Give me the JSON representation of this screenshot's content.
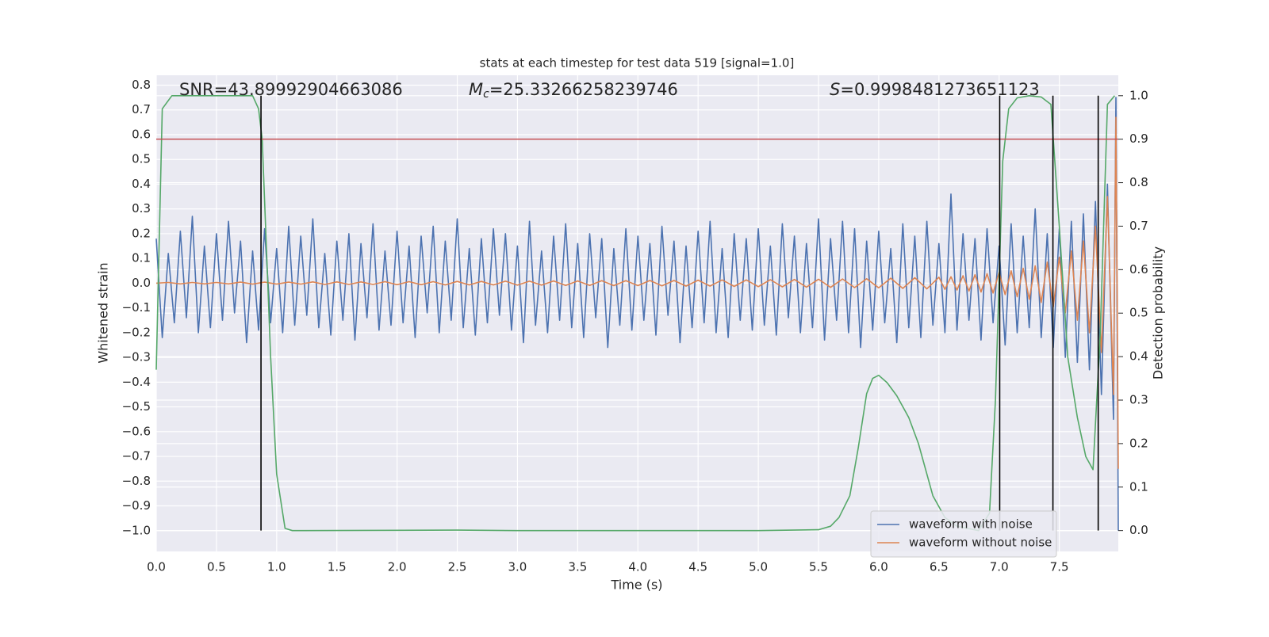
{
  "chart_data": {
    "type": "line",
    "title": "stats at each timestep for test data 519 [signal=1.0]",
    "xlabel": "Time (s)",
    "ylabel": "Whitened strain",
    "y2label": "Detection probability",
    "snr_label": "SNR=43.89992904663086",
    "mc_label": [
      "M",
      "c",
      "=25.33266258239746"
    ],
    "s_label": [
      "S",
      "=0.9998481273651123"
    ],
    "xlim": [
      0,
      7.99
    ],
    "ylim": [
      -1.084,
      0.84
    ],
    "y2lim": [
      -0.048,
      1.047
    ],
    "grid": true,
    "legend": "lower right",
    "xticks": [
      {
        "value": 0,
        "label": "0.0"
      },
      {
        "value": 0.5,
        "label": "0.5"
      },
      {
        "value": 1,
        "label": "1.0"
      },
      {
        "value": 1.5,
        "label": "1.5"
      },
      {
        "value": 2,
        "label": "2.0"
      },
      {
        "value": 2.5,
        "label": "2.5"
      },
      {
        "value": 3,
        "label": "3.0"
      },
      {
        "value": 3.5,
        "label": "3.5"
      },
      {
        "value": 4,
        "label": "4.0"
      },
      {
        "value": 4.5,
        "label": "4.5"
      },
      {
        "value": 5,
        "label": "5.0"
      },
      {
        "value": 5.5,
        "label": "5.5"
      },
      {
        "value": 6,
        "label": "6.0"
      },
      {
        "value": 6.5,
        "label": "6.5"
      },
      {
        "value": 7,
        "label": "7.0"
      },
      {
        "value": 7.5,
        "label": "7.5"
      }
    ],
    "yticks": [
      {
        "value": -1,
        "label": "−1.0"
      },
      {
        "value": -0.9,
        "label": "−0.9"
      },
      {
        "value": -0.8,
        "label": "−0.8"
      },
      {
        "value": -0.7,
        "label": "−0.7"
      },
      {
        "value": -0.6,
        "label": "−0.6"
      },
      {
        "value": -0.5,
        "label": "−0.5"
      },
      {
        "value": -0.4,
        "label": "−0.4"
      },
      {
        "value": -0.3,
        "label": "−0.3"
      },
      {
        "value": -0.2,
        "label": "−0.2"
      },
      {
        "value": -0.1,
        "label": "−0.1"
      },
      {
        "value": 0,
        "label": "0.0"
      },
      {
        "value": 0.1,
        "label": "0.1"
      },
      {
        "value": 0.2,
        "label": "0.2"
      },
      {
        "value": 0.3,
        "label": "0.3"
      },
      {
        "value": 0.4,
        "label": "0.4"
      },
      {
        "value": 0.5,
        "label": "0.5"
      },
      {
        "value": 0.6,
        "label": "0.6"
      },
      {
        "value": 0.7,
        "label": "0.7"
      },
      {
        "value": 0.8,
        "label": "0.8"
      }
    ],
    "y2ticks": [
      {
        "value": 0,
        "label": "0.0"
      },
      {
        "value": 0.1,
        "label": "0.1"
      },
      {
        "value": 0.2,
        "label": "0.2"
      },
      {
        "value": 0.3,
        "label": "0.3"
      },
      {
        "value": 0.4,
        "label": "0.4"
      },
      {
        "value": 0.5,
        "label": "0.5"
      },
      {
        "value": 0.6,
        "label": "0.6"
      },
      {
        "value": 0.7,
        "label": "0.7"
      },
      {
        "value": 0.8,
        "label": "0.8"
      },
      {
        "value": 0.9,
        "label": "0.9"
      },
      {
        "value": 1,
        "label": "1.0"
      }
    ],
    "threshold_y2": 0.9,
    "threshold_color": "#c44e52",
    "vlines": [
      0.87,
      7.005,
      7.447,
      7.823
    ],
    "vline_color": "#000000",
    "series": [
      {
        "name": "waveform with noise",
        "color": "#4c72b0",
        "x": [
          0,
          0.05,
          0.1,
          0.15,
          0.2,
          0.25,
          0.3,
          0.35,
          0.4,
          0.45,
          0.5,
          0.55,
          0.6,
          0.65,
          0.7,
          0.75,
          0.8,
          0.85,
          0.9,
          0.95,
          1,
          1.05,
          1.1,
          1.15,
          1.2,
          1.25,
          1.3,
          1.35,
          1.4,
          1.45,
          1.5,
          1.55,
          1.6,
          1.65,
          1.7,
          1.75,
          1.8,
          1.85,
          1.9,
          1.95,
          2,
          2.05,
          2.1,
          2.15,
          2.2,
          2.25,
          2.3,
          2.35,
          2.4,
          2.45,
          2.5,
          2.55,
          2.6,
          2.65,
          2.7,
          2.75,
          2.8,
          2.85,
          2.9,
          2.95,
          3,
          3.05,
          3.1,
          3.15,
          3.2,
          3.25,
          3.3,
          3.35,
          3.4,
          3.45,
          3.5,
          3.55,
          3.6,
          3.65,
          3.7,
          3.75,
          3.8,
          3.85,
          3.9,
          3.95,
          4,
          4.05,
          4.1,
          4.15,
          4.2,
          4.25,
          4.3,
          4.35,
          4.4,
          4.45,
          4.5,
          4.55,
          4.6,
          4.65,
          4.7,
          4.75,
          4.8,
          4.85,
          4.9,
          4.95,
          5,
          5.05,
          5.1,
          5.15,
          5.2,
          5.25,
          5.3,
          5.35,
          5.4,
          5.45,
          5.5,
          5.55,
          5.6,
          5.65,
          5.7,
          5.75,
          5.8,
          5.85,
          5.9,
          5.95,
          6,
          6.05,
          6.1,
          6.15,
          6.2,
          6.25,
          6.3,
          6.35,
          6.4,
          6.45,
          6.5,
          6.55,
          6.6,
          6.65,
          6.7,
          6.75,
          6.8,
          6.85,
          6.9,
          6.95,
          7,
          7.05,
          7.1,
          7.15,
          7.2,
          7.25,
          7.3,
          7.35,
          7.4,
          7.45,
          7.5,
          7.55,
          7.6,
          7.65,
          7.7,
          7.75,
          7.8,
          7.85,
          7.9,
          7.95,
          7.97,
          7.99
        ],
        "values": [
          0.18,
          -0.22,
          0.12,
          -0.16,
          0.21,
          -0.14,
          0.27,
          -0.2,
          0.15,
          -0.18,
          0.2,
          -0.15,
          0.25,
          -0.12,
          0.17,
          -0.24,
          0.13,
          -0.19,
          0.22,
          -0.16,
          0.14,
          -0.2,
          0.23,
          -0.17,
          0.19,
          -0.13,
          0.26,
          -0.18,
          0.12,
          -0.21,
          0.17,
          -0.15,
          0.2,
          -0.23,
          0.16,
          -0.14,
          0.24,
          -0.19,
          0.13,
          -0.17,
          0.21,
          -0.16,
          0.15,
          -0.22,
          0.19,
          -0.12,
          0.23,
          -0.2,
          0.17,
          -0.15,
          0.26,
          -0.18,
          0.14,
          -0.21,
          0.18,
          -0.16,
          0.22,
          -0.13,
          0.2,
          -0.19,
          0.15,
          -0.24,
          0.25,
          -0.17,
          0.13,
          -0.2,
          0.19,
          -0.15,
          0.24,
          -0.18,
          0.16,
          -0.22,
          0.2,
          -0.14,
          0.18,
          -0.26,
          0.14,
          -0.17,
          0.22,
          -0.19,
          0.19,
          -0.15,
          0.16,
          -0.21,
          0.23,
          -0.13,
          0.17,
          -0.24,
          0.15,
          -0.18,
          0.21,
          -0.16,
          0.25,
          -0.2,
          0.14,
          -0.22,
          0.2,
          -0.15,
          0.18,
          -0.19,
          0.22,
          -0.17,
          0.15,
          -0.21,
          0.24,
          -0.14,
          0.19,
          -0.2,
          0.16,
          -0.18,
          0.26,
          -0.23,
          0.18,
          -0.15,
          0.25,
          -0.2,
          0.22,
          -0.26,
          0.17,
          -0.19,
          0.21,
          -0.16,
          0.14,
          -0.24,
          0.24,
          -0.18,
          0.19,
          -0.22,
          0.25,
          -0.17,
          0.16,
          -0.2,
          0.36,
          -0.19,
          0.2,
          -0.15,
          0.18,
          -0.23,
          0.22,
          -0.16,
          0.15,
          -0.25,
          0.24,
          -0.2,
          0.19,
          -0.18,
          0.3,
          -0.22,
          0.2,
          -0.26,
          0.22,
          -0.3,
          0.25,
          -0.32,
          0.28,
          -0.35,
          0.33,
          -0.45,
          0.4,
          -0.55,
          0.75,
          -1.0
        ]
      },
      {
        "name": "waveform without noise",
        "color": "#dd8452",
        "x": [
          0,
          0.1,
          0.2,
          0.3,
          0.4,
          0.5,
          0.6,
          0.7,
          0.8,
          0.9,
          1,
          1.1,
          1.2,
          1.3,
          1.4,
          1.5,
          1.6,
          1.7,
          1.8,
          1.9,
          2,
          2.1,
          2.2,
          2.3,
          2.4,
          2.5,
          2.6,
          2.7,
          2.8,
          2.9,
          3,
          3.1,
          3.2,
          3.3,
          3.4,
          3.5,
          3.6,
          3.7,
          3.8,
          3.9,
          4,
          4.1,
          4.2,
          4.3,
          4.4,
          4.5,
          4.6,
          4.7,
          4.8,
          4.9,
          5,
          5.1,
          5.2,
          5.3,
          5.4,
          5.5,
          5.6,
          5.7,
          5.8,
          5.9,
          6,
          6.1,
          6.2,
          6.3,
          6.4,
          6.5,
          6.55,
          6.6,
          6.65,
          6.7,
          6.75,
          6.8,
          6.85,
          6.9,
          6.95,
          7,
          7.05,
          7.1,
          7.15,
          7.2,
          7.25,
          7.3,
          7.35,
          7.4,
          7.45,
          7.5,
          7.55,
          7.6,
          7.65,
          7.7,
          7.75,
          7.8,
          7.85,
          7.9,
          7.95,
          7.97,
          7.99
        ],
        "values": [
          0,
          0.003,
          -0.003,
          0.003,
          -0.003,
          0.003,
          -0.003,
          0.004,
          -0.004,
          0.004,
          -0.004,
          0.004,
          -0.004,
          0.005,
          -0.005,
          0.005,
          -0.005,
          0.005,
          -0.005,
          0.006,
          -0.006,
          0.006,
          -0.006,
          0.006,
          -0.007,
          0.007,
          -0.007,
          0.007,
          -0.007,
          0.008,
          -0.008,
          0.008,
          -0.008,
          0.009,
          -0.009,
          0.009,
          -0.009,
          0.01,
          -0.01,
          0.01,
          -0.01,
          0.011,
          -0.011,
          0.011,
          -0.012,
          0.012,
          -0.012,
          0.013,
          -0.013,
          0.013,
          -0.014,
          0.014,
          -0.015,
          0.015,
          -0.016,
          0.016,
          -0.017,
          0.017,
          -0.018,
          0.018,
          -0.019,
          0.02,
          -0.021,
          0.022,
          -0.023,
          0.024,
          -0.025,
          0.026,
          -0.028,
          0.03,
          -0.032,
          0.034,
          -0.036,
          0.038,
          -0.04,
          0.043,
          -0.046,
          0.05,
          -0.055,
          0.06,
          -0.065,
          0.07,
          -0.078,
          0.085,
          -0.095,
          0.105,
          -0.12,
          0.13,
          -0.15,
          0.17,
          -0.2,
          0.23,
          -0.28,
          0.35,
          -0.45,
          0.67,
          -0.75
        ]
      },
      {
        "color": "#55a868",
        "axis": "y2",
        "x": [
          0,
          0.05,
          0.13,
          0.8,
          0.85,
          0.88,
          0.95,
          1,
          1.07,
          1.13,
          2.5,
          3,
          5,
          5.5,
          5.6,
          5.67,
          5.76,
          5.83,
          5.9,
          5.95,
          6,
          6.07,
          6.15,
          6.25,
          6.33,
          6.45,
          6.55,
          6.65,
          6.83,
          6.92,
          6.97,
          7.03,
          7.08,
          7.15,
          7.25,
          7.35,
          7.43,
          7.5,
          7.57,
          7.65,
          7.72,
          7.78,
          7.84,
          7.9,
          7.96
        ],
        "values": [
          0.37,
          0.97,
          1,
          1,
          0.97,
          0.9,
          0.4,
          0.13,
          0.005,
          0,
          0.001,
          0,
          0,
          0.002,
          0.01,
          0.03,
          0.08,
          0.19,
          0.315,
          0.35,
          0.357,
          0.34,
          0.31,
          0.26,
          0.2,
          0.08,
          0.03,
          0.01,
          0,
          0.04,
          0.3,
          0.85,
          0.97,
          0.995,
          1,
          0.997,
          0.98,
          0.7,
          0.4,
          0.26,
          0.17,
          0.14,
          0.45,
          0.98,
          1
        ]
      }
    ]
  }
}
